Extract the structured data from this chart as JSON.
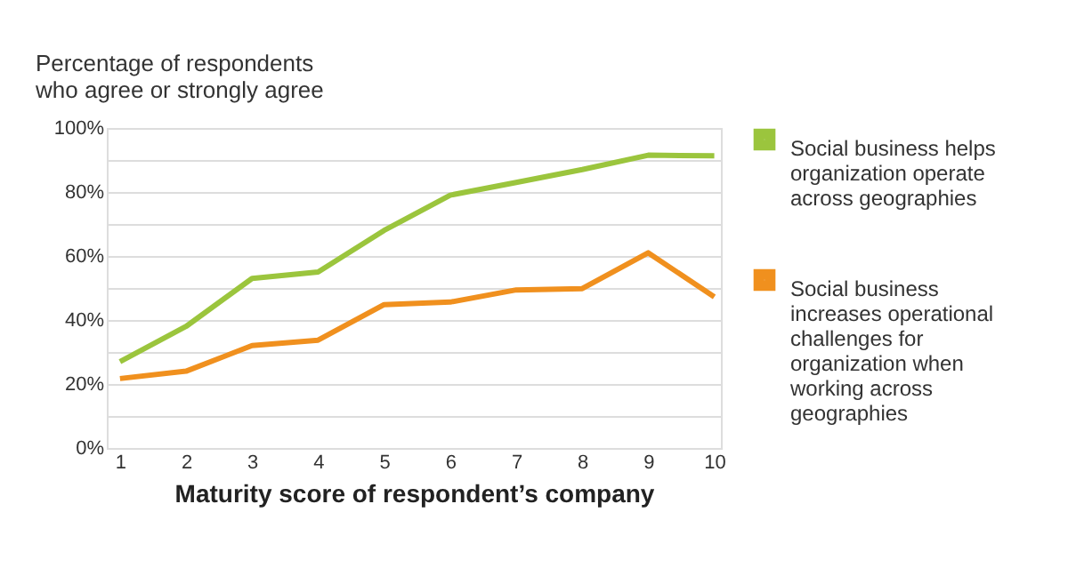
{
  "chart_data": {
    "type": "line",
    "ylabel": "Percentage of respondents who agree or strongly agree",
    "xlabel": "Maturity score of respondent’s company",
    "x": [
      1,
      2,
      3,
      4,
      5,
      6,
      7,
      8,
      9,
      10
    ],
    "series": [
      {
        "name": "Social business helps organization operate across geographies",
        "color": "#9bc53d",
        "values": [
          27,
          38,
          53,
          55,
          68,
          79,
          83,
          87,
          91.5,
          91.3
        ]
      },
      {
        "name": "Social business increases operational challenges for organization when working across geographies",
        "color": "#f0901e",
        "values": [
          21.7,
          24,
          32,
          33.7,
          44.8,
          45.6,
          49.4,
          49.8,
          61,
          47.2
        ]
      }
    ],
    "xlim": [
      0.8,
      10.1
    ],
    "xticks": [
      1,
      2,
      3,
      4,
      5,
      6,
      7,
      8,
      9,
      10
    ],
    "ylim": [
      0,
      100
    ],
    "yticks": [
      {
        "value": 0,
        "label": "0%"
      },
      {
        "value": 10,
        "label": null
      },
      {
        "value": 20,
        "label": "20%"
      },
      {
        "value": 30,
        "label": null
      },
      {
        "value": 40,
        "label": "40%"
      },
      {
        "value": 50,
        "label": null
      },
      {
        "value": 60,
        "label": "60%"
      },
      {
        "value": 70,
        "label": null
      },
      {
        "value": 80,
        "label": "80%"
      },
      {
        "value": 90,
        "label": null
      },
      {
        "value": 100,
        "label": "100%"
      }
    ],
    "grid": "y",
    "legend": "right",
    "marker": "none",
    "line_style": "solid"
  }
}
